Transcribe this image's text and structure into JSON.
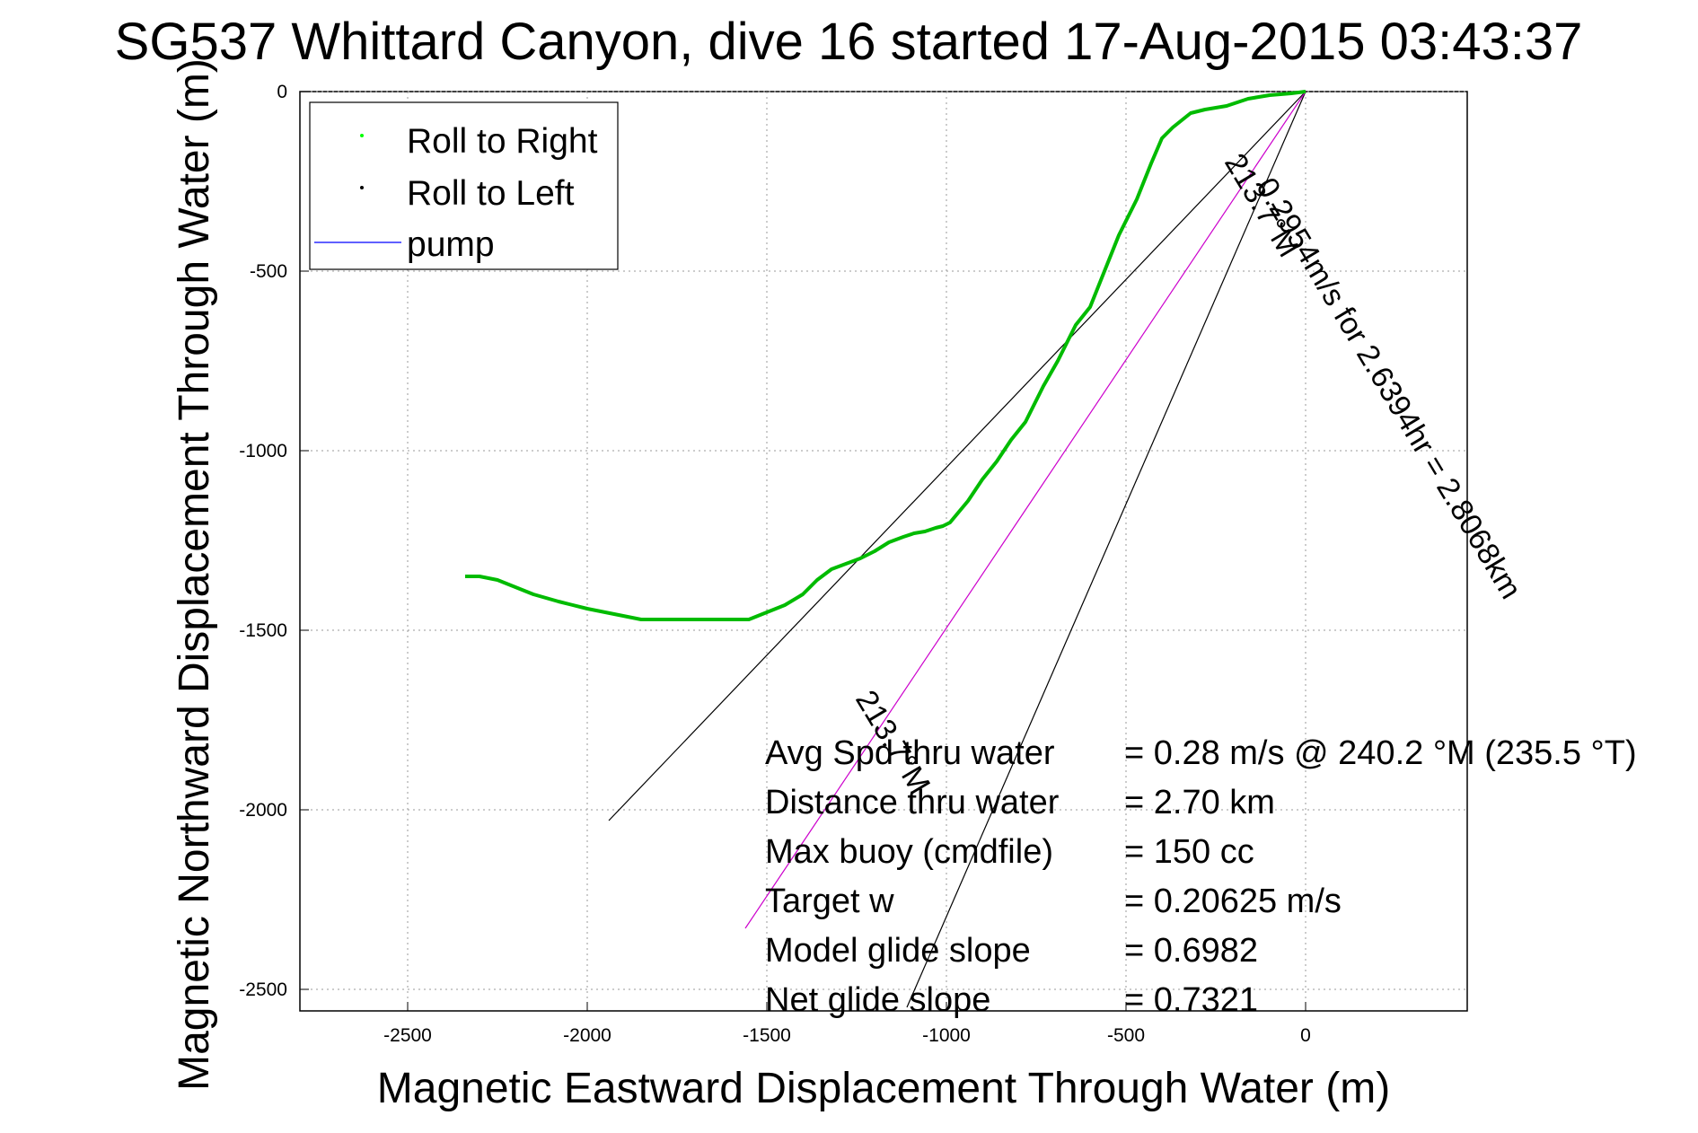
{
  "chart_data": {
    "type": "line",
    "title": "SG537 Whittard Canyon, dive 16 started 17-Aug-2015 03:43:37",
    "xlabel": "Magnetic Eastward Displacement Through Water (m)",
    "ylabel": "Magnetic Northward Displacement Through Water (m)",
    "xlim": [
      -2800,
      450
    ],
    "ylim": [
      -2560,
      0
    ],
    "x_ticks": [
      -2500,
      -2000,
      -1500,
      -1000,
      -500,
      0
    ],
    "y_ticks": [
      0,
      -500,
      -1000,
      -1500,
      -2000,
      -2500
    ],
    "x_tick_labels": [
      "-2500",
      "-2000",
      "-1500",
      "-1000",
      "-500",
      "0"
    ],
    "y_tick_labels": [
      "0",
      "-500",
      "-1000",
      "-1500",
      "-2000",
      "-2500"
    ],
    "grid": true,
    "legend_position": "top-left",
    "legend": [
      {
        "label": "Roll to Right",
        "color": "#00ff00",
        "marker": "dot"
      },
      {
        "label": "Roll to Left",
        "color": "#000000",
        "marker": "dot"
      },
      {
        "label": "pump",
        "color": "#0000ff",
        "marker": "line"
      }
    ],
    "series": [
      {
        "name": "Roll to Right",
        "color": "#00bb00",
        "x": [
          0,
          -40,
          -100,
          -160,
          -220,
          -280,
          -320,
          -370,
          -400,
          -430,
          -470,
          -520,
          -560,
          -600,
          -640,
          -690,
          -730,
          -780,
          -820,
          -860,
          -900,
          -940,
          -990,
          -1010,
          -1030,
          -1060,
          -1090,
          -1120,
          -1160,
          -1200,
          -1240,
          -1280,
          -1320,
          -1360,
          -1400,
          -1450,
          -1500,
          -1550,
          -1600,
          -1650,
          -1700,
          -1750,
          -1800,
          -1850,
          -1900,
          -1950,
          -2000,
          -2080,
          -2150,
          -2200,
          -2250,
          -2300,
          -2340
        ],
        "y": [
          0,
          -5,
          -10,
          -20,
          -40,
          -50,
          -60,
          -100,
          -130,
          -200,
          -300,
          -400,
          -500,
          -600,
          -650,
          -750,
          -820,
          -920,
          -970,
          -1030,
          -1080,
          -1140,
          -1200,
          -1210,
          -1215,
          -1225,
          -1230,
          -1240,
          -1255,
          -1280,
          -1300,
          -1315,
          -1330,
          -1360,
          -1400,
          -1430,
          -1450,
          -1470,
          -1470,
          -1470,
          -1470,
          -1470,
          -1470,
          -1470,
          -1460,
          -1450,
          -1440,
          -1420,
          -1400,
          -1380,
          -1360,
          -1350,
          -1350
        ]
      }
    ],
    "reference_lines": [
      {
        "color": "#000000",
        "x": [
          0,
          -1940
        ],
        "y": [
          0,
          -2030
        ]
      },
      {
        "color": "#000000",
        "x": [
          0,
          -1110
        ],
        "y": [
          0,
          -2550
        ]
      },
      {
        "color": "#cc00cc",
        "x": [
          0,
          -1560
        ],
        "y": [
          0,
          -2330
        ]
      }
    ],
    "annotations": [
      {
        "text": "0.2954m/s for 2.6394hr = 2.8068km",
        "angle": 59
      },
      {
        "text": "213.7°M",
        "angle": 59
      },
      {
        "text": "213.7°M",
        "angle": 59
      }
    ],
    "stats": [
      {
        "label": "Avg Spd thru water",
        "value": "=  0.28 m/s @ 240.2 °M (235.5 °T)"
      },
      {
        "label": "Distance thru water",
        "value": "=  2.70 km"
      },
      {
        "label": "Max buoy (cmdfile)",
        "value": "= 150 cc"
      },
      {
        "label": "Target w",
        "value": "= 0.20625 m/s"
      },
      {
        "label": "Model glide slope",
        "value": "= 0.6982"
      },
      {
        "label": "Net glide slope",
        "value": "= 0.7321"
      }
    ]
  }
}
